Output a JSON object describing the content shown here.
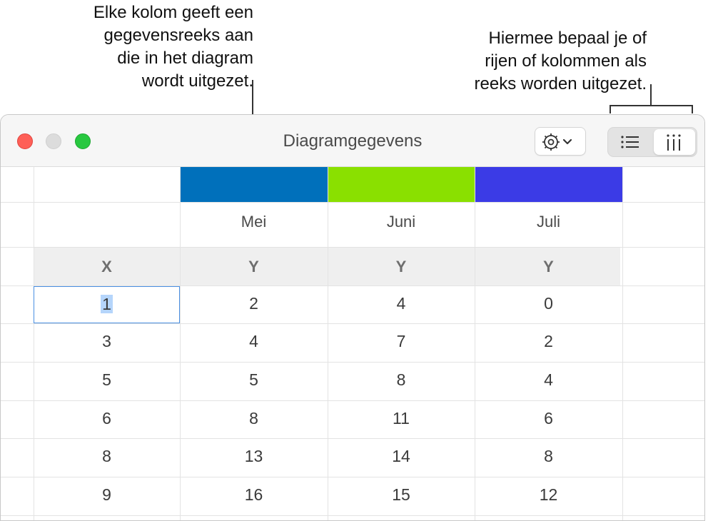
{
  "callouts": {
    "series": [
      "Elke kolom geeft een",
      "gegevensreeks aan",
      "die in het diagram",
      "wordt uitgezet."
    ],
    "plot_by": [
      "Hiermee bepaal je of",
      "rijen of kolommen als",
      "reeks worden uitgezet."
    ]
  },
  "window": {
    "title": "Diagramgegevens"
  },
  "toolbar": {
    "gear_icon": "gear-with-chevron-icon",
    "rows_icon": "list-rows-icon",
    "columns_icon": "columns-icon",
    "selected_mode": "columns"
  },
  "table": {
    "series": [
      {
        "name": "Mei",
        "color": "#0070bb"
      },
      {
        "name": "Juni",
        "color": "#8ae000"
      },
      {
        "name": "Juli",
        "color": "#3b3be6"
      }
    ],
    "axis": {
      "x": "X",
      "y": "Y"
    },
    "rows": [
      [
        "1",
        "2",
        "4",
        "0"
      ],
      [
        "3",
        "4",
        "7",
        "2"
      ],
      [
        "5",
        "5",
        "8",
        "4"
      ],
      [
        "6",
        "8",
        "11",
        "6"
      ],
      [
        "8",
        "13",
        "14",
        "8"
      ],
      [
        "9",
        "16",
        "15",
        "12"
      ]
    ]
  }
}
